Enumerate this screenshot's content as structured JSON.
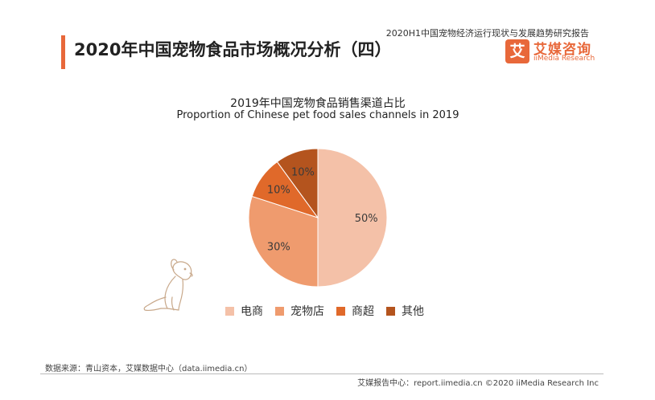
{
  "header": {
    "report_tag": "2020H1中国宠物经济运行现状与发展趋势研究报告",
    "title": "2020年中国宠物食品市场概况分析（四）"
  },
  "logo": {
    "mark": "艾",
    "name_cn": "艾媒咨询",
    "name_en": "iiMedia Research"
  },
  "colors": {
    "accent": "#e8683a"
  },
  "chart_data": {
    "type": "pie",
    "title": "2019年中国宠物食品销售渠道占比",
    "subtitle": "Proportion of Chinese pet food sales channels in 2019",
    "categories": [
      "电商",
      "宠物店",
      "商超",
      "其他"
    ],
    "values": [
      50,
      30,
      10,
      10
    ],
    "labels": [
      "50%",
      "30%",
      "10%",
      "10%"
    ],
    "colors": [
      "#f4c1a8",
      "#ef9b6e",
      "#e0692a",
      "#b4541e"
    ],
    "legend_position": "bottom"
  },
  "footer": {
    "source": "数据来源：青山资本，艾媒数据中心（data.iimedia.cn）",
    "copyright": "艾媒报告中心：report.iimedia.cn   ©2020  iiMedia Research  Inc"
  }
}
